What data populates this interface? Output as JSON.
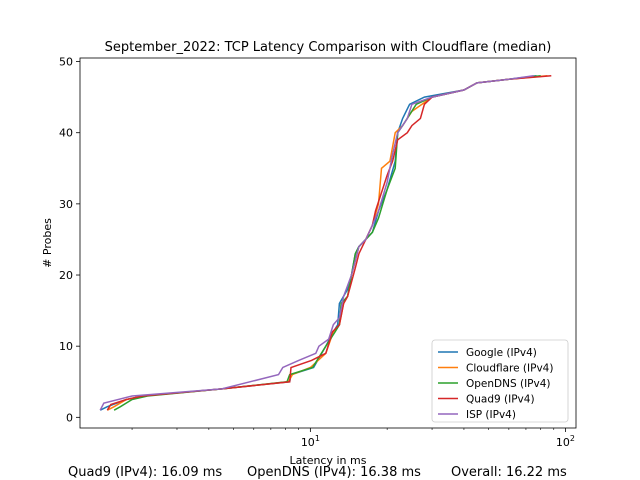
{
  "chart_data": {
    "type": "line",
    "title": "September_2022: TCP Latency Comparison with Cloudflare (median)",
    "xlabel": "Latency in ms",
    "ylabel": "# Probes",
    "xscale": "log",
    "xlim": [
      1.25,
      110
    ],
    "ylim": [
      -1.5,
      50.5
    ],
    "x_ticks": [
      10,
      100
    ],
    "x_tick_labels": [
      "10^1",
      "10^2"
    ],
    "y_ticks": [
      0,
      10,
      20,
      30,
      40,
      50
    ],
    "y_tick_labels": [
      "0",
      "10",
      "20",
      "30",
      "40",
      "50"
    ],
    "grid": false,
    "legend_position": "lower-right",
    "series": [
      {
        "name": "Google (IPv4)",
        "color": "#1f77b4",
        "points": [
          [
            1.5,
            1
          ],
          [
            1.6,
            1.5
          ],
          [
            1.9,
            2.5
          ],
          [
            2.2,
            3
          ],
          [
            4.5,
            4
          ],
          [
            8.3,
            5
          ],
          [
            8.4,
            6
          ],
          [
            10.3,
            7
          ],
          [
            11.5,
            10
          ],
          [
            12.3,
            12
          ],
          [
            12.8,
            13
          ],
          [
            13.0,
            16
          ],
          [
            14.0,
            18
          ],
          [
            14.5,
            20
          ],
          [
            15.0,
            23
          ],
          [
            15.5,
            24
          ],
          [
            16.5,
            25
          ],
          [
            17.5,
            26
          ],
          [
            18.5,
            29
          ],
          [
            20.0,
            32
          ],
          [
            21.5,
            36
          ],
          [
            22.0,
            40
          ],
          [
            23.0,
            42
          ],
          [
            24.5,
            44
          ],
          [
            28.0,
            45
          ],
          [
            40.0,
            46
          ],
          [
            45.0,
            47
          ],
          [
            60.0,
            47.5
          ],
          [
            77.0,
            48
          ]
        ]
      },
      {
        "name": "Cloudflare (IPv4)",
        "color": "#ff7f0e",
        "points": [
          [
            1.6,
            1
          ],
          [
            1.7,
            1.5
          ],
          [
            1.9,
            2.5
          ],
          [
            2.2,
            3
          ],
          [
            4.5,
            4
          ],
          [
            8.2,
            5
          ],
          [
            8.5,
            6
          ],
          [
            10.0,
            7
          ],
          [
            11.5,
            9
          ],
          [
            12.3,
            12
          ],
          [
            13.0,
            13
          ],
          [
            13.5,
            16
          ],
          [
            14.0,
            17
          ],
          [
            14.5,
            20
          ],
          [
            15.0,
            22
          ],
          [
            15.5,
            24
          ],
          [
            16.5,
            25
          ],
          [
            17.5,
            27
          ],
          [
            18.5,
            30
          ],
          [
            19.0,
            35
          ],
          [
            20.5,
            36
          ],
          [
            21.5,
            40
          ],
          [
            23.0,
            41
          ],
          [
            25.0,
            43
          ],
          [
            30.0,
            45
          ],
          [
            40.0,
            46
          ],
          [
            45.0,
            47
          ],
          [
            60.0,
            47.5
          ],
          [
            85.0,
            48
          ]
        ]
      },
      {
        "name": "OpenDNS (IPv4)",
        "color": "#2ca02c",
        "points": [
          [
            1.7,
            1
          ],
          [
            1.8,
            1.5
          ],
          [
            2.0,
            2.5
          ],
          [
            2.3,
            3
          ],
          [
            4.5,
            4
          ],
          [
            8.1,
            5
          ],
          [
            8.3,
            6
          ],
          [
            10.2,
            7
          ],
          [
            11.5,
            10
          ],
          [
            12.5,
            12
          ],
          [
            13.0,
            13
          ],
          [
            13.2,
            16
          ],
          [
            14.0,
            17
          ],
          [
            14.5,
            20
          ],
          [
            15.0,
            23
          ],
          [
            15.5,
            24
          ],
          [
            16.5,
            25
          ],
          [
            17.5,
            26
          ],
          [
            18.5,
            28
          ],
          [
            20.0,
            32
          ],
          [
            21.5,
            35
          ],
          [
            22.0,
            40
          ],
          [
            23.0,
            41
          ],
          [
            26.0,
            44
          ],
          [
            30.0,
            45
          ],
          [
            40.0,
            46
          ],
          [
            45.0,
            47
          ],
          [
            60.0,
            47.5
          ],
          [
            80.0,
            48
          ]
        ]
      },
      {
        "name": "Quad9 (IPv4)",
        "color": "#d62728",
        "points": [
          [
            1.6,
            1
          ],
          [
            1.65,
            1.8
          ],
          [
            1.9,
            2.5
          ],
          [
            2.2,
            3
          ],
          [
            4.5,
            4
          ],
          [
            8.3,
            5
          ],
          [
            8.4,
            7
          ],
          [
            10.1,
            8
          ],
          [
            11.5,
            9
          ],
          [
            12.2,
            12
          ],
          [
            13.0,
            13
          ],
          [
            13.5,
            16
          ],
          [
            14.0,
            17
          ],
          [
            14.5,
            19
          ],
          [
            15.0,
            21
          ],
          [
            15.5,
            23
          ],
          [
            16.5,
            25
          ],
          [
            17.5,
            27
          ],
          [
            18.0,
            29
          ],
          [
            20.0,
            34
          ],
          [
            21.0,
            36
          ],
          [
            22.0,
            39
          ],
          [
            24.0,
            40
          ],
          [
            25.0,
            41
          ],
          [
            27.0,
            42
          ],
          [
            28.0,
            44
          ],
          [
            30.0,
            45
          ],
          [
            40.0,
            46
          ],
          [
            45.0,
            47
          ],
          [
            60.0,
            47.5
          ],
          [
            88.0,
            48
          ]
        ]
      },
      {
        "name": "ISP (IPv4)",
        "color": "#9467bd",
        "points": [
          [
            1.5,
            1
          ],
          [
            1.55,
            2
          ],
          [
            2.0,
            3
          ],
          [
            4.5,
            4
          ],
          [
            7.5,
            6
          ],
          [
            7.8,
            7
          ],
          [
            9.0,
            8
          ],
          [
            10.5,
            9
          ],
          [
            10.8,
            10
          ],
          [
            11.8,
            11
          ],
          [
            12.3,
            13
          ],
          [
            13.0,
            14
          ],
          [
            13.5,
            17
          ],
          [
            14.5,
            20
          ],
          [
            15.0,
            22
          ],
          [
            15.5,
            24
          ],
          [
            16.5,
            25
          ],
          [
            17.5,
            27
          ],
          [
            18.5,
            29
          ],
          [
            20.0,
            33
          ],
          [
            21.0,
            37
          ],
          [
            22.0,
            40
          ],
          [
            23.0,
            41
          ],
          [
            24.0,
            42
          ],
          [
            25.0,
            44
          ],
          [
            30.0,
            45
          ],
          [
            40.0,
            46
          ],
          [
            45.0,
            47
          ],
          [
            60.0,
            47.5
          ],
          [
            75.0,
            48
          ]
        ]
      }
    ]
  },
  "footer": {
    "quad9": "Quad9 (IPv4): 16.09 ms",
    "opendns": "OpenDNS (IPv4): 16.38 ms",
    "overall": "Overall: 16.22 ms"
  }
}
